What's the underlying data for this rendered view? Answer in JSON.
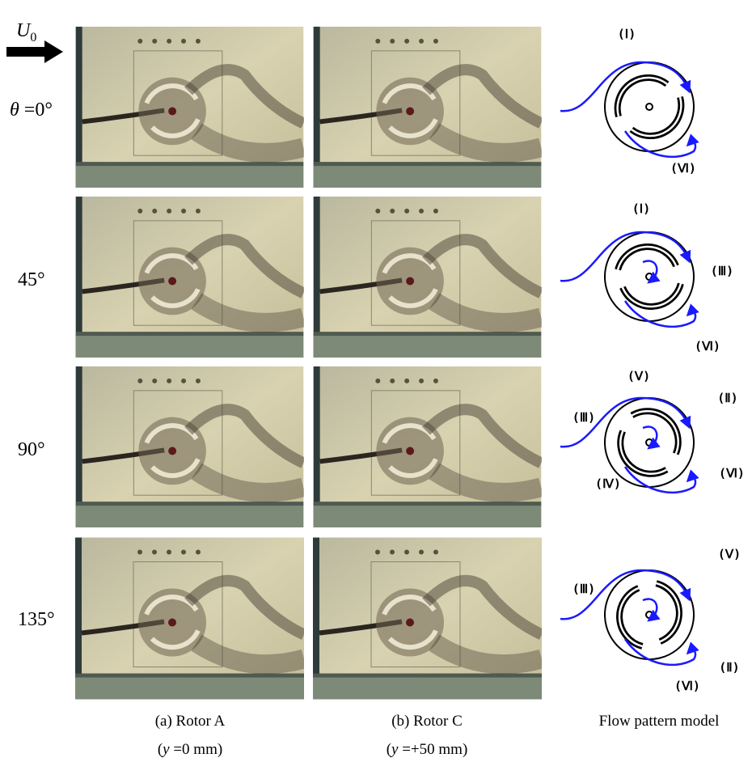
{
  "flow_label": {
    "symbol": "U",
    "subscript": "0"
  },
  "rows": [
    {
      "angle_symbol": "θ",
      "angle": " =0°",
      "labels": [
        "(Ⅰ)",
        "(Ⅵ)"
      ]
    },
    {
      "angle": "45°",
      "labels": [
        "(Ⅰ)",
        "(Ⅲ)",
        "(Ⅵ)"
      ]
    },
    {
      "angle": "90°",
      "labels": [
        "(Ⅴ)",
        "(Ⅱ)",
        "(Ⅲ)",
        "(Ⅳ)",
        "(Ⅵ)"
      ]
    },
    {
      "angle": "135°",
      "labels": [
        "(Ⅴ)",
        "(Ⅲ)",
        "(Ⅱ)",
        "(Ⅵ)"
      ]
    }
  ],
  "columns": [
    {
      "title": "(a) Rotor A",
      "open": "(",
      "variable": "y",
      "condition": " =0 mm)"
    },
    {
      "title": "(b) Rotor C",
      "open": "(",
      "variable": "y",
      "condition": " =+50 mm)"
    },
    {
      "title": "Flow pattern model"
    }
  ]
}
